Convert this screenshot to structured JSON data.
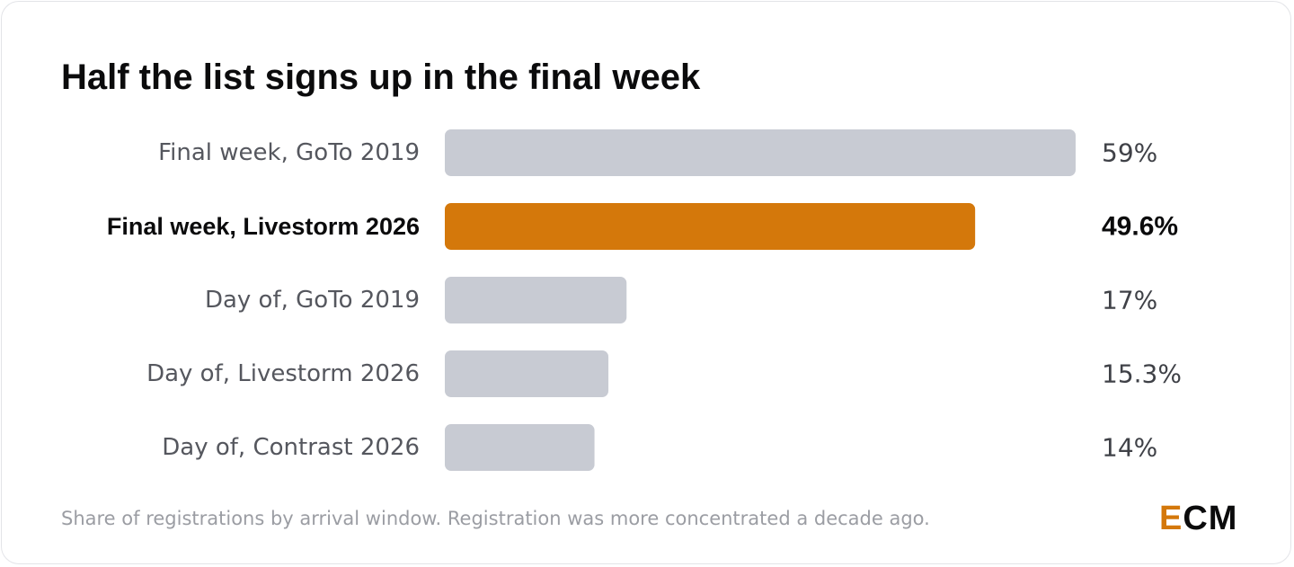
{
  "title": "Half the list signs up in the final week",
  "footnote": "Share of registrations by arrival window. Registration was more concentrated a decade ago.",
  "logo": {
    "text": "ECM",
    "lead": "E",
    "rest": "CM"
  },
  "colors": {
    "highlight": "#d4780b",
    "muted_bar": "#c8cbd3",
    "text_dark": "#0b0b0c",
    "text_muted": "#55575e"
  },
  "chart_data": {
    "type": "bar",
    "orientation": "horizontal",
    "categories": [
      "Final week, GoTo 2019",
      "Final week, Livestorm 2026",
      "Day of, GoTo 2019",
      "Day of, Livestorm 2026",
      "Day of, Contrast 2026"
    ],
    "values": [
      59,
      49.6,
      17,
      15.3,
      14
    ],
    "value_labels": [
      "59%",
      "49.6%",
      "17%",
      "15.3%",
      "14%"
    ],
    "highlight_index": 1,
    "xlim": [
      0,
      59
    ],
    "unit": "%",
    "grid": false,
    "legend": "none"
  }
}
